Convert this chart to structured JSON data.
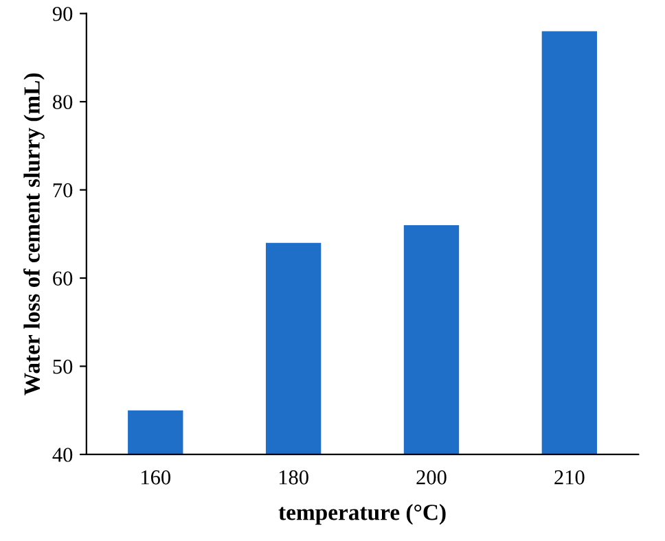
{
  "chart_data": {
    "type": "bar",
    "xlabel": "temperature (°C)",
    "ylabel": "Water loss of cement slurry (mL)",
    "categories": [
      "160",
      "180",
      "200",
      "210"
    ],
    "values": [
      45,
      64,
      66,
      88
    ],
    "color": "#1f6fc8",
    "ylim": [
      40,
      90
    ],
    "yticks": [
      40,
      50,
      60,
      70,
      80,
      90
    ],
    "grid": false
  }
}
